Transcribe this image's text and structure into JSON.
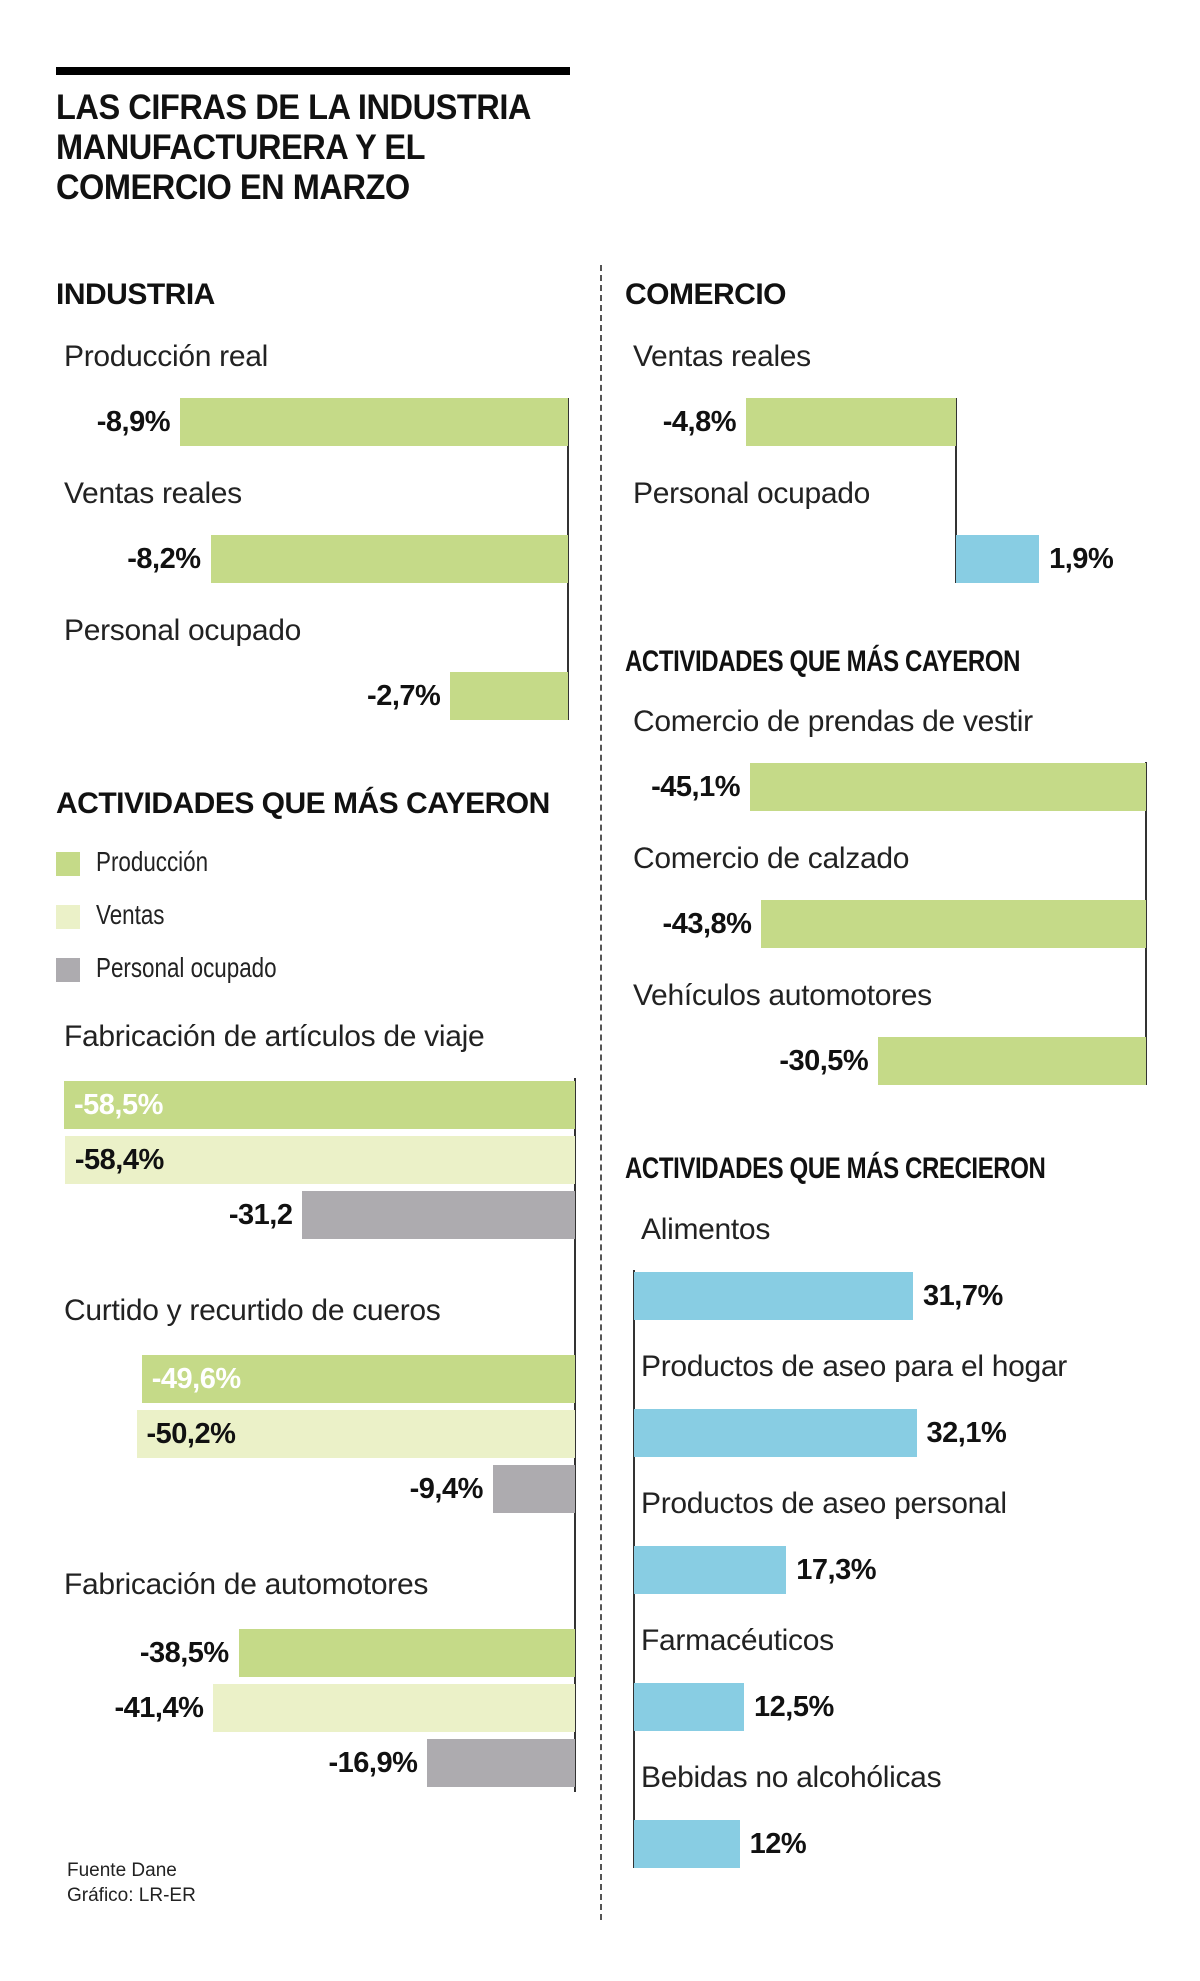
{
  "header": {
    "title_lines": [
      "LAS CIFRAS DE LA INDUSTRIA",
      "MANUFACTURERA Y EL",
      "COMERCIO EN MARZO"
    ]
  },
  "colors": {
    "produccion": "#c5da88",
    "ventas": "#ebf1c8",
    "personal": "#adabaf",
    "positive": "#88cde3",
    "axis": "#333333"
  },
  "footer": {
    "source": "Fuente Dane",
    "credit": "Gráfico: LR-ER"
  },
  "chart_data": [
    {
      "id": "industria",
      "type": "bar",
      "orientation": "horizontal",
      "title": "INDUSTRIA",
      "categories": [
        "Producción real",
        "Ventas reales",
        "Personal ocupado"
      ],
      "values": [
        -8.9,
        -8.2,
        -2.7
      ],
      "labels": [
        "-8,9%",
        "-8,2%",
        "-2,7%"
      ],
      "series_colors": [
        "produccion",
        "produccion",
        "produccion"
      ]
    },
    {
      "id": "comercio",
      "type": "bar",
      "orientation": "horizontal",
      "title": "COMERCIO",
      "categories": [
        "Ventas reales",
        "Personal ocupado"
      ],
      "values": [
        -4.8,
        1.9
      ],
      "labels": [
        "-4,8%",
        "1,9%"
      ],
      "series_colors": [
        "produccion",
        "positive"
      ]
    },
    {
      "id": "industria-cayeron",
      "type": "bar",
      "orientation": "horizontal",
      "title": "ACTIVIDADES QUE MÁS CAYERON",
      "legend": [
        "Producción",
        "Ventas",
        "Personal ocupado"
      ],
      "legend_position": "top-left",
      "categories": [
        "Fabricación de artículos de viaje",
        "Curtido y recurtido de cueros",
        "Fabricación de automotores"
      ],
      "series": [
        {
          "name": "Producción",
          "values": [
            -58.5,
            -49.6,
            -38.5
          ],
          "labels": [
            "-58,5%",
            "-49,6%",
            "-38,5%"
          ]
        },
        {
          "name": "Ventas",
          "values": [
            -58.4,
            -50.2,
            -41.4
          ],
          "labels": [
            "-58,4%",
            "-50,2%",
            "-41,4%"
          ]
        },
        {
          "name": "Personal ocupado",
          "values": [
            -31.2,
            -9.4,
            -16.9
          ],
          "labels": [
            "-31,2",
            "-9,4%",
            "-16,9%"
          ]
        }
      ]
    },
    {
      "id": "comercio-cayeron",
      "type": "bar",
      "orientation": "horizontal",
      "title": "ACTIVIDADES QUE MÁS CAYERON",
      "categories": [
        "Comercio de prendas de vestir",
        "Comercio de calzado",
        "Vehículos automotores"
      ],
      "values": [
        -45.1,
        -43.8,
        -30.5
      ],
      "labels": [
        "-45,1%",
        "-43,8%",
        "-30,5%"
      ]
    },
    {
      "id": "comercio-crecieron",
      "type": "bar",
      "orientation": "horizontal",
      "title": "ACTIVIDADES QUE MÁS CRECIERON",
      "categories": [
        "Alimentos",
        "Productos de aseo para el hogar",
        "Productos de aseo personal",
        "Farmacéuticos",
        "Bebidas no alcohólicas"
      ],
      "values": [
        31.7,
        32.1,
        17.3,
        12.5,
        12
      ],
      "labels": [
        "31,7%",
        "32,1%",
        "17,3%",
        "12,5%",
        "12%"
      ]
    }
  ]
}
